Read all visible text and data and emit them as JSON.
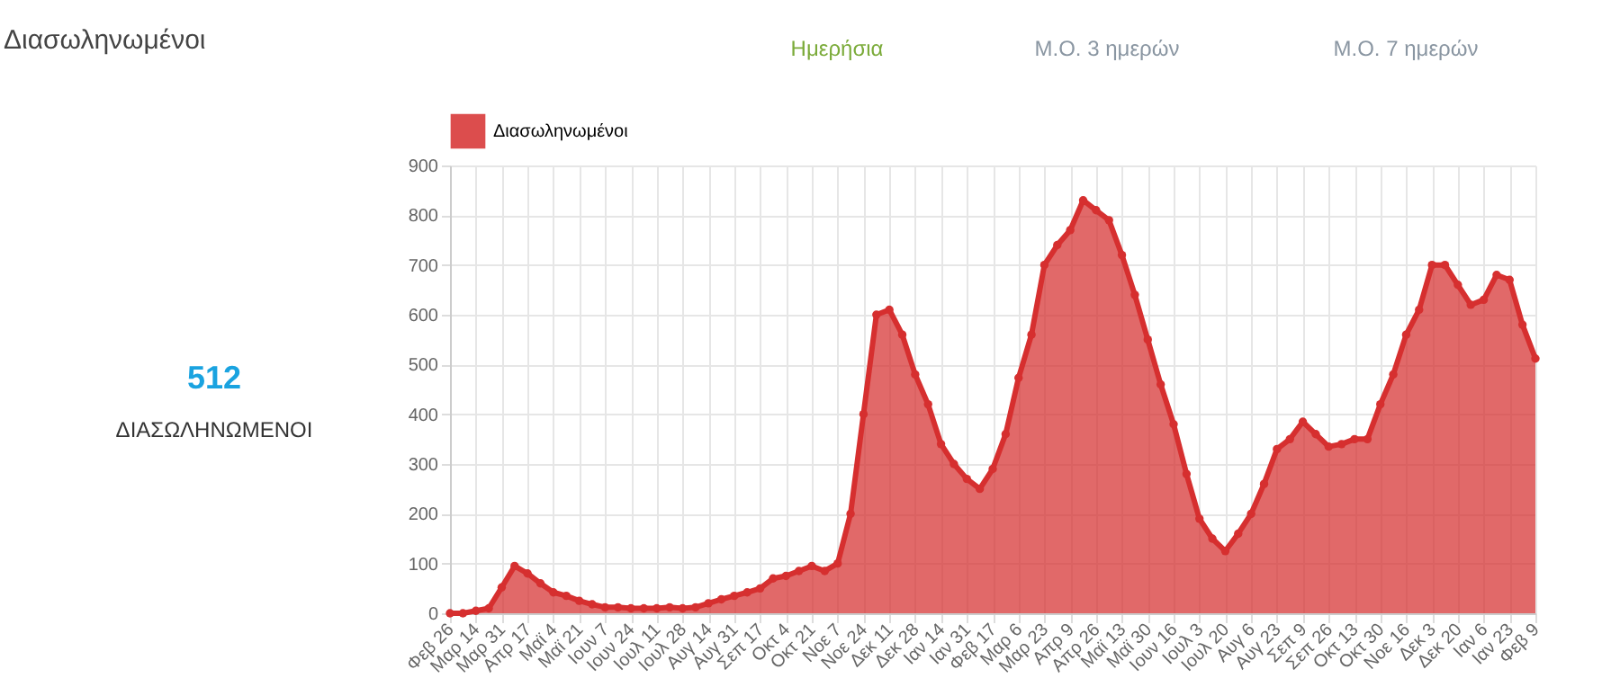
{
  "chart_data": {
    "type": "area",
    "title": "Διασωληνωμένοι",
    "annotations": [
      "512",
      "ΔΙΑΣΩΛΗΝΩΜΕΝΟΙ",
      "Ημερήσια",
      "Μ.Ο. 3 ημερών",
      "Μ.Ο. 7 ημερών"
    ],
    "categories": [
      "Φεβ 26",
      null,
      "Μαρ 14",
      null,
      "Μαρ 31",
      null,
      "Απρ 17",
      null,
      "Μαϊ 4",
      null,
      "Μαϊ 21",
      null,
      "Ιουν 7",
      null,
      "Ιουν 24",
      null,
      "Ιουλ 11",
      null,
      "Ιουλ 28",
      null,
      "Αυγ 14",
      null,
      "Αυγ 31",
      null,
      "Σεπ 17",
      null,
      "Οκτ 4",
      null,
      "Οκτ 21",
      null,
      "Νοε 7",
      null,
      "Νοε 24",
      null,
      "Δεκ 11",
      null,
      "Δεκ 28",
      null,
      "Ιαν 14",
      null,
      "Ιαν 31",
      null,
      "Φεβ 17",
      null,
      "Μαρ 6",
      null,
      "Μαρ 23",
      null,
      "Απρ 9",
      null,
      "Απρ 26",
      null,
      "Μαϊ 13",
      null,
      "Μαϊ 30",
      null,
      "Ιουν 16",
      null,
      "Ιουλ 3",
      null,
      "Ιουλ 20",
      null,
      "Αυγ 6",
      null,
      "Αυγ 23",
      null,
      "Σεπ 9",
      null,
      "Σεπ 26",
      null,
      "Οκτ 13",
      null,
      "Οκτ 30",
      null,
      "Νοε 16",
      null,
      "Δεκ 3",
      null,
      "Δεκ 20",
      null,
      "Ιαν 6",
      null,
      "Ιαν 23",
      null,
      "Φεβ 9"
    ],
    "series": [
      {
        "name": "Διασωληνωμένοι",
        "color": "#d62f2f",
        "values": [
          0,
          0,
          5,
          10,
          52,
          95,
          80,
          60,
          42,
          35,
          25,
          18,
          12,
          12,
          10,
          10,
          10,
          12,
          10,
          12,
          20,
          28,
          35,
          42,
          50,
          70,
          75,
          85,
          95,
          85,
          100,
          200,
          400,
          600,
          610,
          560,
          480,
          420,
          340,
          300,
          270,
          250,
          290,
          360,
          473,
          560,
          700,
          740,
          770,
          830,
          810,
          790,
          720,
          640,
          550,
          460,
          380,
          280,
          190,
          150,
          125,
          160,
          200,
          260,
          330,
          350,
          385,
          360,
          335,
          340,
          350,
          350,
          420,
          480,
          560,
          610,
          700,
          700,
          660,
          620,
          630,
          680,
          670,
          580,
          512
        ]
      }
    ],
    "ylim": [
      0,
      900
    ],
    "yticks": [
      0,
      100,
      200,
      300,
      400,
      500,
      600,
      700,
      800,
      900
    ],
    "grid": true,
    "legend": "top",
    "marker": "circle"
  }
}
